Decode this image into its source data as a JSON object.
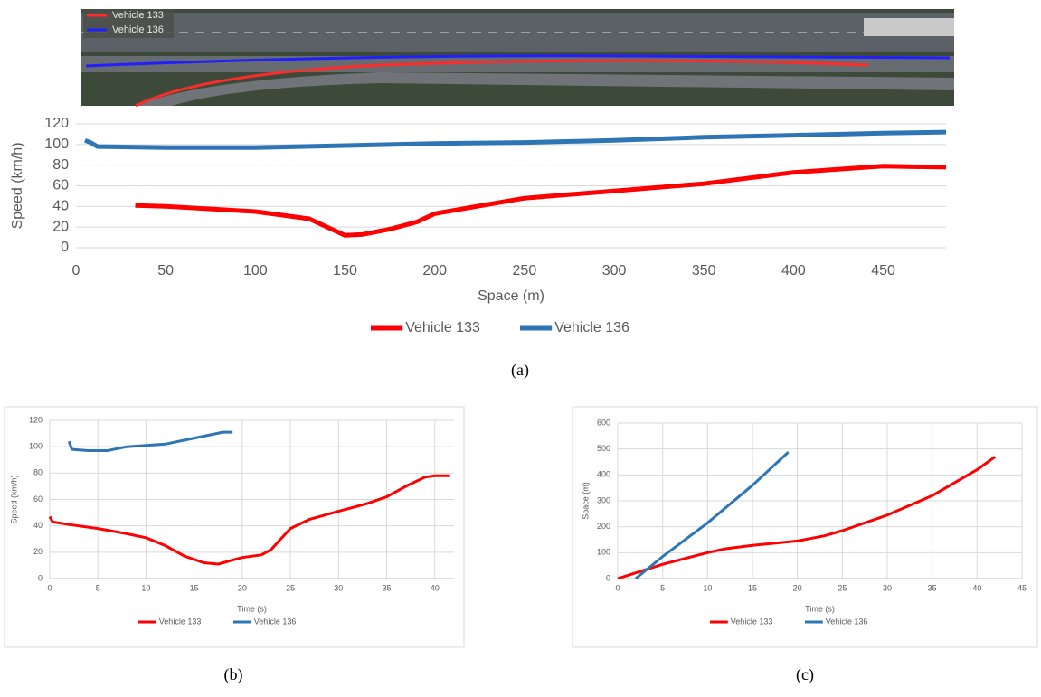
{
  "aerial_image": {
    "legend": [
      {
        "name": "Vehicle 133",
        "color": "#ff2a2a"
      },
      {
        "name": "Vehicle 136",
        "color": "#2020ff"
      }
    ]
  },
  "chart_data": [
    {
      "type": "line",
      "panel_label": "(a)",
      "x_label": "Space (m)",
      "y_label": "Speed (km/h)",
      "xlim": [
        0,
        485
      ],
      "ylim": [
        0,
        120
      ],
      "xticks": [
        0,
        50,
        100,
        150,
        200,
        250,
        300,
        350,
        400,
        450
      ],
      "yticks": [
        0,
        20,
        40,
        60,
        80,
        100,
        120
      ],
      "grid": "y",
      "series": [
        {
          "name": "Vehicle 133",
          "color": "#ff0000",
          "x": [
            33,
            50,
            100,
            130,
            150,
            160,
            175,
            190,
            200,
            250,
            300,
            350,
            400,
            450,
            485
          ],
          "values": [
            41,
            40,
            35,
            28,
            12,
            13,
            18,
            25,
            33,
            48,
            55,
            62,
            73,
            79,
            78
          ]
        },
        {
          "name": "Vehicle 136",
          "color": "#2e75b6",
          "x": [
            5,
            8,
            12,
            50,
            100,
            150,
            200,
            250,
            300,
            350,
            400,
            450,
            485
          ],
          "values": [
            104,
            102,
            98,
            97,
            97,
            99,
            101,
            102,
            104,
            107,
            109,
            111,
            112
          ]
        }
      ]
    },
    {
      "type": "line",
      "panel_label": "(b)",
      "x_label": "Time (s)",
      "y_label": "Speed (km/h)",
      "xlim": [
        0,
        42
      ],
      "ylim": [
        0,
        120
      ],
      "xticks": [
        0,
        5,
        10,
        15,
        20,
        25,
        30,
        35,
        40
      ],
      "yticks": [
        0,
        20,
        40,
        60,
        80,
        100,
        120
      ],
      "grid": "both",
      "series": [
        {
          "name": "Vehicle 133",
          "color": "#ff0000",
          "x": [
            0,
            0.3,
            2,
            5,
            8,
            10,
            12,
            14,
            16,
            17.5,
            19,
            20,
            22,
            23,
            24,
            25,
            27,
            30,
            33,
            35,
            37,
            39,
            40,
            41.5
          ],
          "values": [
            47,
            43,
            41,
            38,
            34,
            31,
            25,
            17,
            12,
            11,
            14,
            16,
            18,
            22,
            30,
            38,
            45,
            51,
            57,
            62,
            70,
            77,
            78,
            78
          ]
        },
        {
          "name": "Vehicle 136",
          "color": "#2e75b6",
          "x": [
            2,
            2.3,
            4,
            6,
            8,
            10,
            12,
            14,
            16,
            18,
            19
          ],
          "values": [
            104,
            98,
            97,
            97,
            100,
            101,
            102,
            105,
            108,
            111,
            111
          ]
        }
      ]
    },
    {
      "type": "line",
      "panel_label": "(c)",
      "x_label": "Time (s)",
      "y_label": "Space (m)",
      "xlim": [
        0,
        45
      ],
      "ylim": [
        0,
        600
      ],
      "xticks": [
        0,
        5,
        10,
        15,
        20,
        25,
        30,
        35,
        40,
        45
      ],
      "yticks": [
        0,
        100,
        200,
        300,
        400,
        500,
        600
      ],
      "grid": "both",
      "series": [
        {
          "name": "Vehicle 133",
          "color": "#ff0000",
          "x": [
            0,
            5,
            10,
            12,
            15,
            20,
            23,
            25,
            30,
            35,
            40,
            42
          ],
          "values": [
            0,
            55,
            100,
            115,
            128,
            145,
            165,
            185,
            245,
            320,
            420,
            470
          ]
        },
        {
          "name": "Vehicle 136",
          "color": "#2e75b6",
          "x": [
            2,
            5,
            10,
            15,
            19
          ],
          "values": [
            0,
            85,
            215,
            360,
            488
          ]
        }
      ]
    }
  ]
}
